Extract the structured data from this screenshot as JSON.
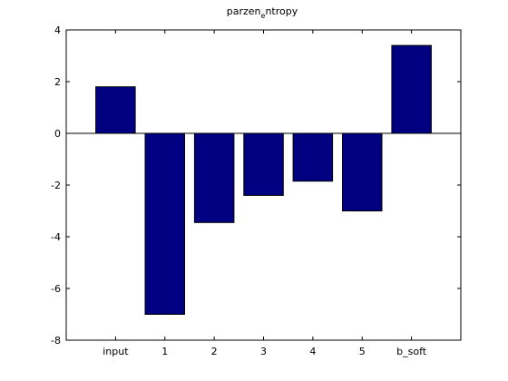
{
  "chart_data": {
    "type": "bar",
    "title_main": "parzen",
    "title_sub": "e",
    "title_rest": "ntropy",
    "categories": [
      "input",
      "1",
      "2",
      "3",
      "4",
      "5",
      "b_soft"
    ],
    "values": [
      1.8,
      -7.0,
      -3.45,
      -2.4,
      -1.85,
      -3.0,
      3.4
    ],
    "ylim": [
      -8,
      4
    ],
    "yticks": [
      -8,
      -6,
      -4,
      -2,
      0,
      2,
      4
    ],
    "xlabel": "",
    "ylabel": "",
    "grid": false,
    "bar_color": "#000080",
    "edge_color": "#000000"
  }
}
